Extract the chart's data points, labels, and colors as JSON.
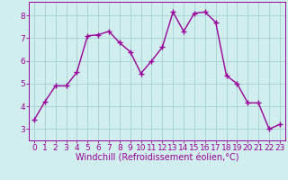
{
  "x": [
    0,
    1,
    2,
    3,
    4,
    5,
    6,
    7,
    8,
    9,
    10,
    11,
    12,
    13,
    14,
    15,
    16,
    17,
    18,
    19,
    20,
    21,
    22,
    23
  ],
  "y": [
    3.4,
    4.2,
    4.9,
    4.9,
    5.5,
    7.1,
    7.15,
    7.3,
    6.8,
    6.4,
    5.45,
    6.0,
    6.6,
    8.15,
    7.3,
    8.1,
    8.15,
    7.7,
    5.35,
    5.0,
    4.15,
    4.15,
    3.0,
    3.2
  ],
  "line_color": "#990099",
  "marker": "+",
  "bg_color": "#d0eeee",
  "grid_color": "#aad4d4",
  "xlabel": "Windchill (Refroidissement éolien,°C)",
  "xlim": [
    -0.5,
    23.5
  ],
  "ylim": [
    2.5,
    8.6
  ],
  "yticks": [
    3,
    4,
    5,
    6,
    7,
    8
  ],
  "xticks": [
    0,
    1,
    2,
    3,
    4,
    5,
    6,
    7,
    8,
    9,
    10,
    11,
    12,
    13,
    14,
    15,
    16,
    17,
    18,
    19,
    20,
    21,
    22,
    23
  ],
  "xlabel_fontsize": 7,
  "tick_fontsize": 6.5,
  "line_width": 1.0,
  "marker_size": 4,
  "marker_edge_width": 1.0
}
